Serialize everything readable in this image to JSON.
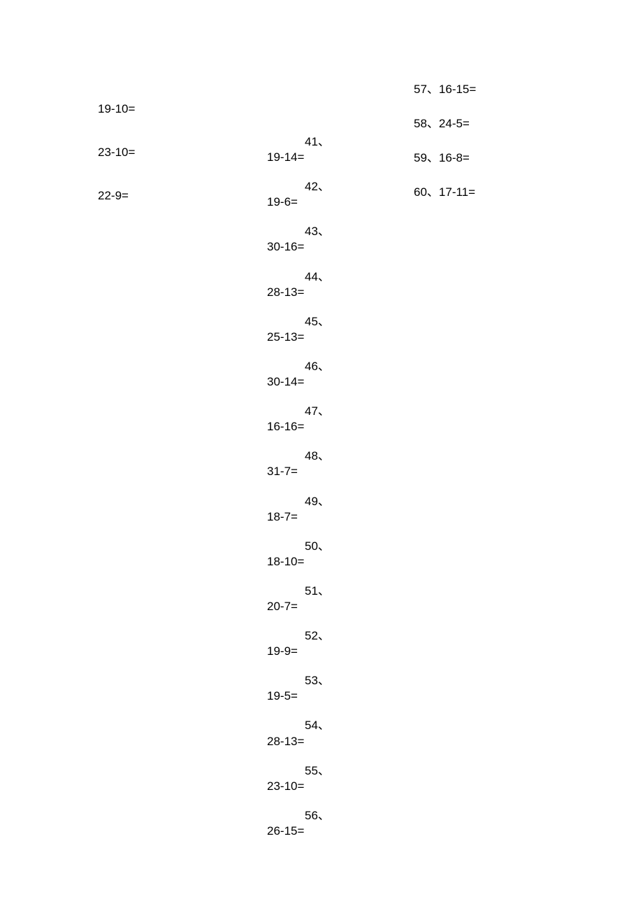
{
  "page": {
    "background_color": "#ffffff",
    "text_color": "#000000",
    "font_size": 17,
    "font_family": "Arial, Microsoft YaHei, sans-serif"
  },
  "column1": {
    "items": [
      {
        "equation": "19-10="
      },
      {
        "equation": "23-10="
      },
      {
        "equation": "22-9="
      }
    ]
  },
  "column2": {
    "items": [
      {
        "number": "41、",
        "equation": "19-14="
      },
      {
        "number": "42、",
        "equation": "19-6="
      },
      {
        "number": "43、",
        "equation": "30-16="
      },
      {
        "number": "44、",
        "equation": "28-13="
      },
      {
        "number": "45、",
        "equation": "25-13="
      },
      {
        "number": "46、",
        "equation": "30-14="
      },
      {
        "number": "47、",
        "equation": "16-16="
      },
      {
        "number": "48、",
        "equation": "31-7="
      },
      {
        "number": "49、",
        "equation": "18-7="
      },
      {
        "number": "50、",
        "equation": "18-10="
      },
      {
        "number": "51、",
        "equation": "20-7="
      },
      {
        "number": "52、",
        "equation": "19-9="
      },
      {
        "number": "53、",
        "equation": "19-5="
      },
      {
        "number": "54、",
        "equation": "28-13="
      },
      {
        "number": "55、",
        "equation": "23-10="
      },
      {
        "number": "56、",
        "equation": "26-15="
      }
    ]
  },
  "column3": {
    "items": [
      {
        "text": "57、16-15="
      },
      {
        "text": "58、24-5="
      },
      {
        "text": "59、16-8="
      },
      {
        "text": "60、17-11="
      }
    ]
  }
}
